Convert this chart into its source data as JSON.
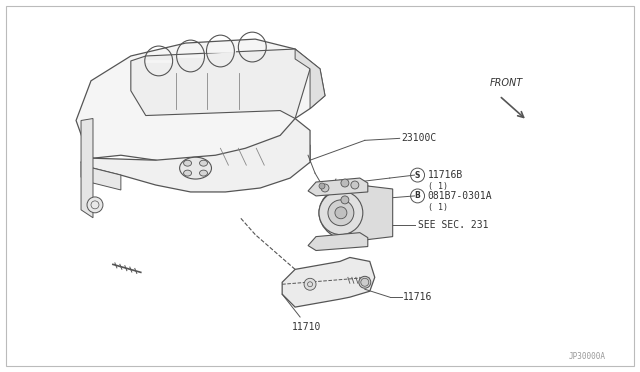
{
  "background_color": "#ffffff",
  "line_color": "#888888",
  "line_color_dark": "#555555",
  "text_color": "#333333",
  "figsize": [
    6.4,
    3.72
  ],
  "dpi": 100,
  "border_color": "#aaaaaa",
  "label_fontsize": 7.0,
  "label_fontsize_small": 6.0,
  "footer_text": "JP30000A",
  "front_text": "FRONT",
  "label_23100C": "23100C",
  "label_S": "S",
  "label_S_text": "11716B",
  "label_S_sub": "( 1)",
  "label_B": "B",
  "label_B_text": "081B7-0301A",
  "label_B_sub": "( 1)",
  "label_seesec": "SEE SEC. 231",
  "label_11716": "11716",
  "label_11710": "11710"
}
